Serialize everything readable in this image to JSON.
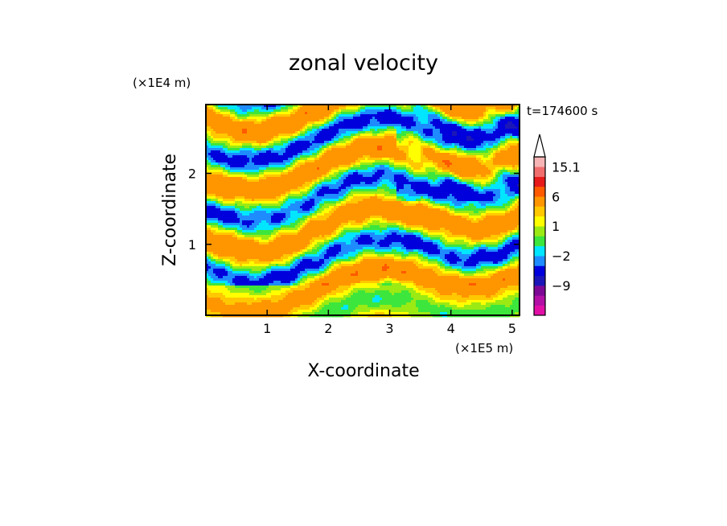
{
  "chart_data": {
    "type": "heatmap",
    "title": "zonal velocity",
    "xlabel": "X-coordinate",
    "ylabel": "Z-coordinate",
    "x_unit_label": "(×1E5 m)",
    "y_unit_label": "(×1E4 m)",
    "time_label": "t=174600 s",
    "xlim": [
      0,
      5.12
    ],
    "ylim": [
      0,
      2.97
    ],
    "x_ticks": [
      1,
      2,
      3,
      4,
      5
    ],
    "x_tick_labels": [
      "1",
      "2",
      "3",
      "4",
      "5"
    ],
    "y_ticks": [
      1,
      2
    ],
    "y_tick_labels": [
      "1",
      "2"
    ],
    "colorbar": {
      "levels": [
        -15,
        -12,
        -9,
        -6,
        -3,
        -2,
        -1,
        0,
        1,
        2,
        3,
        6,
        9,
        12,
        15.1
      ],
      "colors": [
        "#e20fa7",
        "#b10fa5",
        "#7d0896",
        "#1b16b8",
        "#0000dc",
        "#1e8cff",
        "#00e6ff",
        "#3ce63c",
        "#9bea14",
        "#ffff00",
        "#ffc800",
        "#ff9600",
        "#ff5a00",
        "#e61a1a",
        "#f06e6e",
        "#f7b4b4"
      ],
      "labels": [
        {
          "value": 15.1,
          "text": "15.1"
        },
        {
          "value": 6,
          "text": "6"
        },
        {
          "value": 1,
          "text": "1"
        },
        {
          "value": -2,
          "text": "−2"
        },
        {
          "value": -9,
          "text": "−9"
        }
      ],
      "extend": "max"
    }
  }
}
